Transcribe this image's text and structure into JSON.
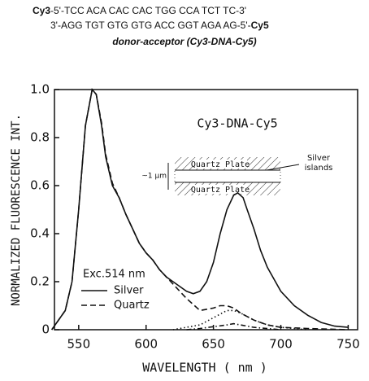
{
  "header": {
    "strand1": [
      "Cy3",
      "-5'-TCC  ACA CAC CAC TGG CCA TCT TC-3'"
    ],
    "strand2": [
      "3'-AGG TGT GTG GTG ACC GGT AGA AG-5'-",
      "Cy5"
    ],
    "subtitle": "donor-acceptor (Cy3-DNA-Cy5)"
  },
  "chart_data": {
    "type": "line",
    "xlabel": "WAVELENGTH ( nm )",
    "ylabel": "NORMALIZED FLUORESCENCE INT.",
    "xlim": [
      532,
      757
    ],
    "ylim": [
      0,
      1.0
    ],
    "xticks": [
      550,
      600,
      650,
      700,
      750
    ],
    "yticks": [
      0,
      0.2,
      0.4,
      0.6,
      0.8,
      {
        "value": 1.0,
        "label": "1.0"
      }
    ],
    "annotations": {
      "label": "Cy3-DNA-Cy5",
      "excitation": "Exc.514 nm",
      "inset": {
        "top_plate": "Quartz  Plate",
        "bottom_plate": "Quartz  Plate",
        "silver": [
          "Silver",
          "islands"
        ],
        "gap": "~1 μm"
      }
    },
    "series": [
      {
        "name": "Silver",
        "color": "#111111",
        "style": "solid",
        "x": [
          530,
          540,
          545,
          550,
          555,
          560,
          563,
          567,
          570,
          575,
          580,
          585,
          590,
          595,
          600,
          605,
          610,
          615,
          620,
          625,
          630,
          635,
          640,
          645,
          650,
          655,
          660,
          665,
          668,
          672,
          675,
          680,
          685,
          690,
          700,
          710,
          720,
          730,
          740,
          750
        ],
        "values": [
          0.0,
          0.08,
          0.2,
          0.5,
          0.85,
          1.0,
          0.98,
          0.85,
          0.72,
          0.6,
          0.55,
          0.48,
          0.42,
          0.36,
          0.32,
          0.29,
          0.25,
          0.22,
          0.2,
          0.18,
          0.16,
          0.15,
          0.16,
          0.2,
          0.28,
          0.4,
          0.5,
          0.56,
          0.57,
          0.55,
          0.5,
          0.42,
          0.33,
          0.26,
          0.16,
          0.1,
          0.06,
          0.03,
          0.015,
          0.01
        ]
      },
      {
        "name": "Quartz",
        "color": "#111111",
        "style": "dashed",
        "x": [
          530,
          540,
          545,
          550,
          555,
          560,
          563,
          567,
          570,
          575,
          580,
          585,
          590,
          595,
          600,
          605,
          610,
          615,
          620,
          625,
          630,
          640,
          650,
          655,
          660,
          665,
          670,
          680,
          690,
          700,
          720,
          750
        ],
        "values": [
          0.0,
          0.08,
          0.2,
          0.5,
          0.85,
          1.0,
          0.98,
          0.86,
          0.73,
          0.61,
          0.55,
          0.48,
          0.42,
          0.36,
          0.32,
          0.29,
          0.25,
          0.22,
          0.19,
          0.16,
          0.13,
          0.08,
          0.09,
          0.1,
          0.1,
          0.09,
          0.07,
          0.04,
          0.02,
          0.01,
          0.005,
          0.0
        ]
      },
      {
        "color": "#111111",
        "style": "dotted",
        "x": [
          620,
          640,
          650,
          660,
          665,
          670,
          680,
          690,
          700,
          720
        ],
        "values": [
          0.0,
          0.02,
          0.05,
          0.08,
          0.08,
          0.07,
          0.04,
          0.02,
          0.01,
          0.0
        ]
      },
      {
        "color": "#111111",
        "style": "dashdot",
        "x": [
          630,
          640,
          660,
          665,
          670,
          680,
          700
        ],
        "values": [
          0.0,
          0.005,
          0.02,
          0.025,
          0.02,
          0.01,
          0.0
        ]
      }
    ]
  }
}
